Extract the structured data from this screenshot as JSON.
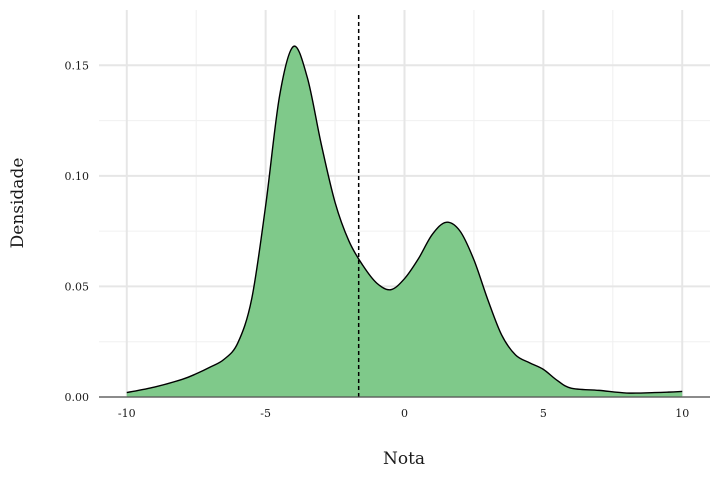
{
  "chart_data": {
    "type": "area",
    "title": "",
    "xlabel": "Nota",
    "ylabel": "Densidade",
    "xlim": [
      -11,
      11
    ],
    "ylim": [
      0,
      0.175
    ],
    "x_ticks": [
      -10,
      -5,
      0,
      5,
      10
    ],
    "x_tick_labels": [
      "-10",
      "-5",
      "0",
      "5",
      "10"
    ],
    "y_ticks": [
      0.0,
      0.05,
      0.1,
      0.15
    ],
    "y_tick_labels": [
      "0.00",
      "0.05",
      "0.10",
      "0.15"
    ],
    "grid": true,
    "fill_color": "#7fc98a",
    "line_color": "#000000",
    "reference_line": {
      "x": -1.65,
      "style": "dashed"
    },
    "x": [
      -10,
      -9,
      -8,
      -7.5,
      -7,
      -6.5,
      -6,
      -5.5,
      -5,
      -4.5,
      -4,
      -3.5,
      -3,
      -2.5,
      -2,
      -1.5,
      -1,
      -0.5,
      0,
      0.5,
      1,
      1.5,
      2,
      2.5,
      3,
      3.5,
      4,
      4.5,
      5,
      5.5,
      6,
      7,
      8,
      9,
      9.5,
      10
    ],
    "y": [
      0.002,
      0.0045,
      0.008,
      0.0105,
      0.0135,
      0.017,
      0.0245,
      0.0445,
      0.0865,
      0.136,
      0.1585,
      0.1445,
      0.1145,
      0.088,
      0.0705,
      0.0595,
      0.0515,
      0.0485,
      0.0535,
      0.0625,
      0.0735,
      0.079,
      0.075,
      0.062,
      0.044,
      0.028,
      0.019,
      0.0155,
      0.0125,
      0.0075,
      0.004,
      0.003,
      0.0018,
      0.002,
      0.0022,
      0.0025
    ]
  }
}
